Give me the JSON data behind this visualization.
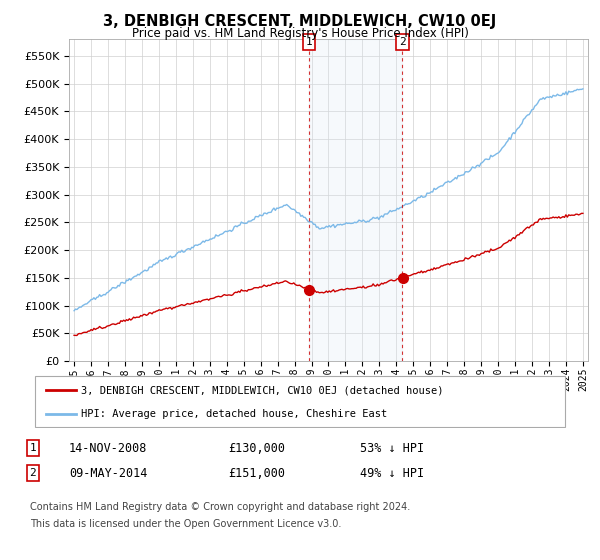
{
  "title": "3, DENBIGH CRESCENT, MIDDLEWICH, CW10 0EJ",
  "subtitle": "Price paid vs. HM Land Registry's House Price Index (HPI)",
  "hpi_color": "#7cb9e8",
  "sold_color": "#cc0000",
  "highlight_color": "#dce9f5",
  "ylim": [
    0,
    580000
  ],
  "yticks": [
    0,
    50000,
    100000,
    150000,
    200000,
    250000,
    300000,
    350000,
    400000,
    450000,
    500000,
    550000
  ],
  "sale1_x": 2008.87,
  "sale1_price": 130000,
  "sale1_date": "14-NOV-2008",
  "sale1_pct": "53% ↓ HPI",
  "sale2_x": 2014.36,
  "sale2_price": 151000,
  "sale2_date": "09-MAY-2014",
  "sale2_pct": "49% ↓ HPI",
  "legend_sold": "3, DENBIGH CRESCENT, MIDDLEWICH, CW10 0EJ (detached house)",
  "legend_hpi": "HPI: Average price, detached house, Cheshire East",
  "footnote1": "Contains HM Land Registry data © Crown copyright and database right 2024.",
  "footnote2": "This data is licensed under the Open Government Licence v3.0.",
  "xlim_start": 1994.7,
  "xlim_end": 2025.3
}
